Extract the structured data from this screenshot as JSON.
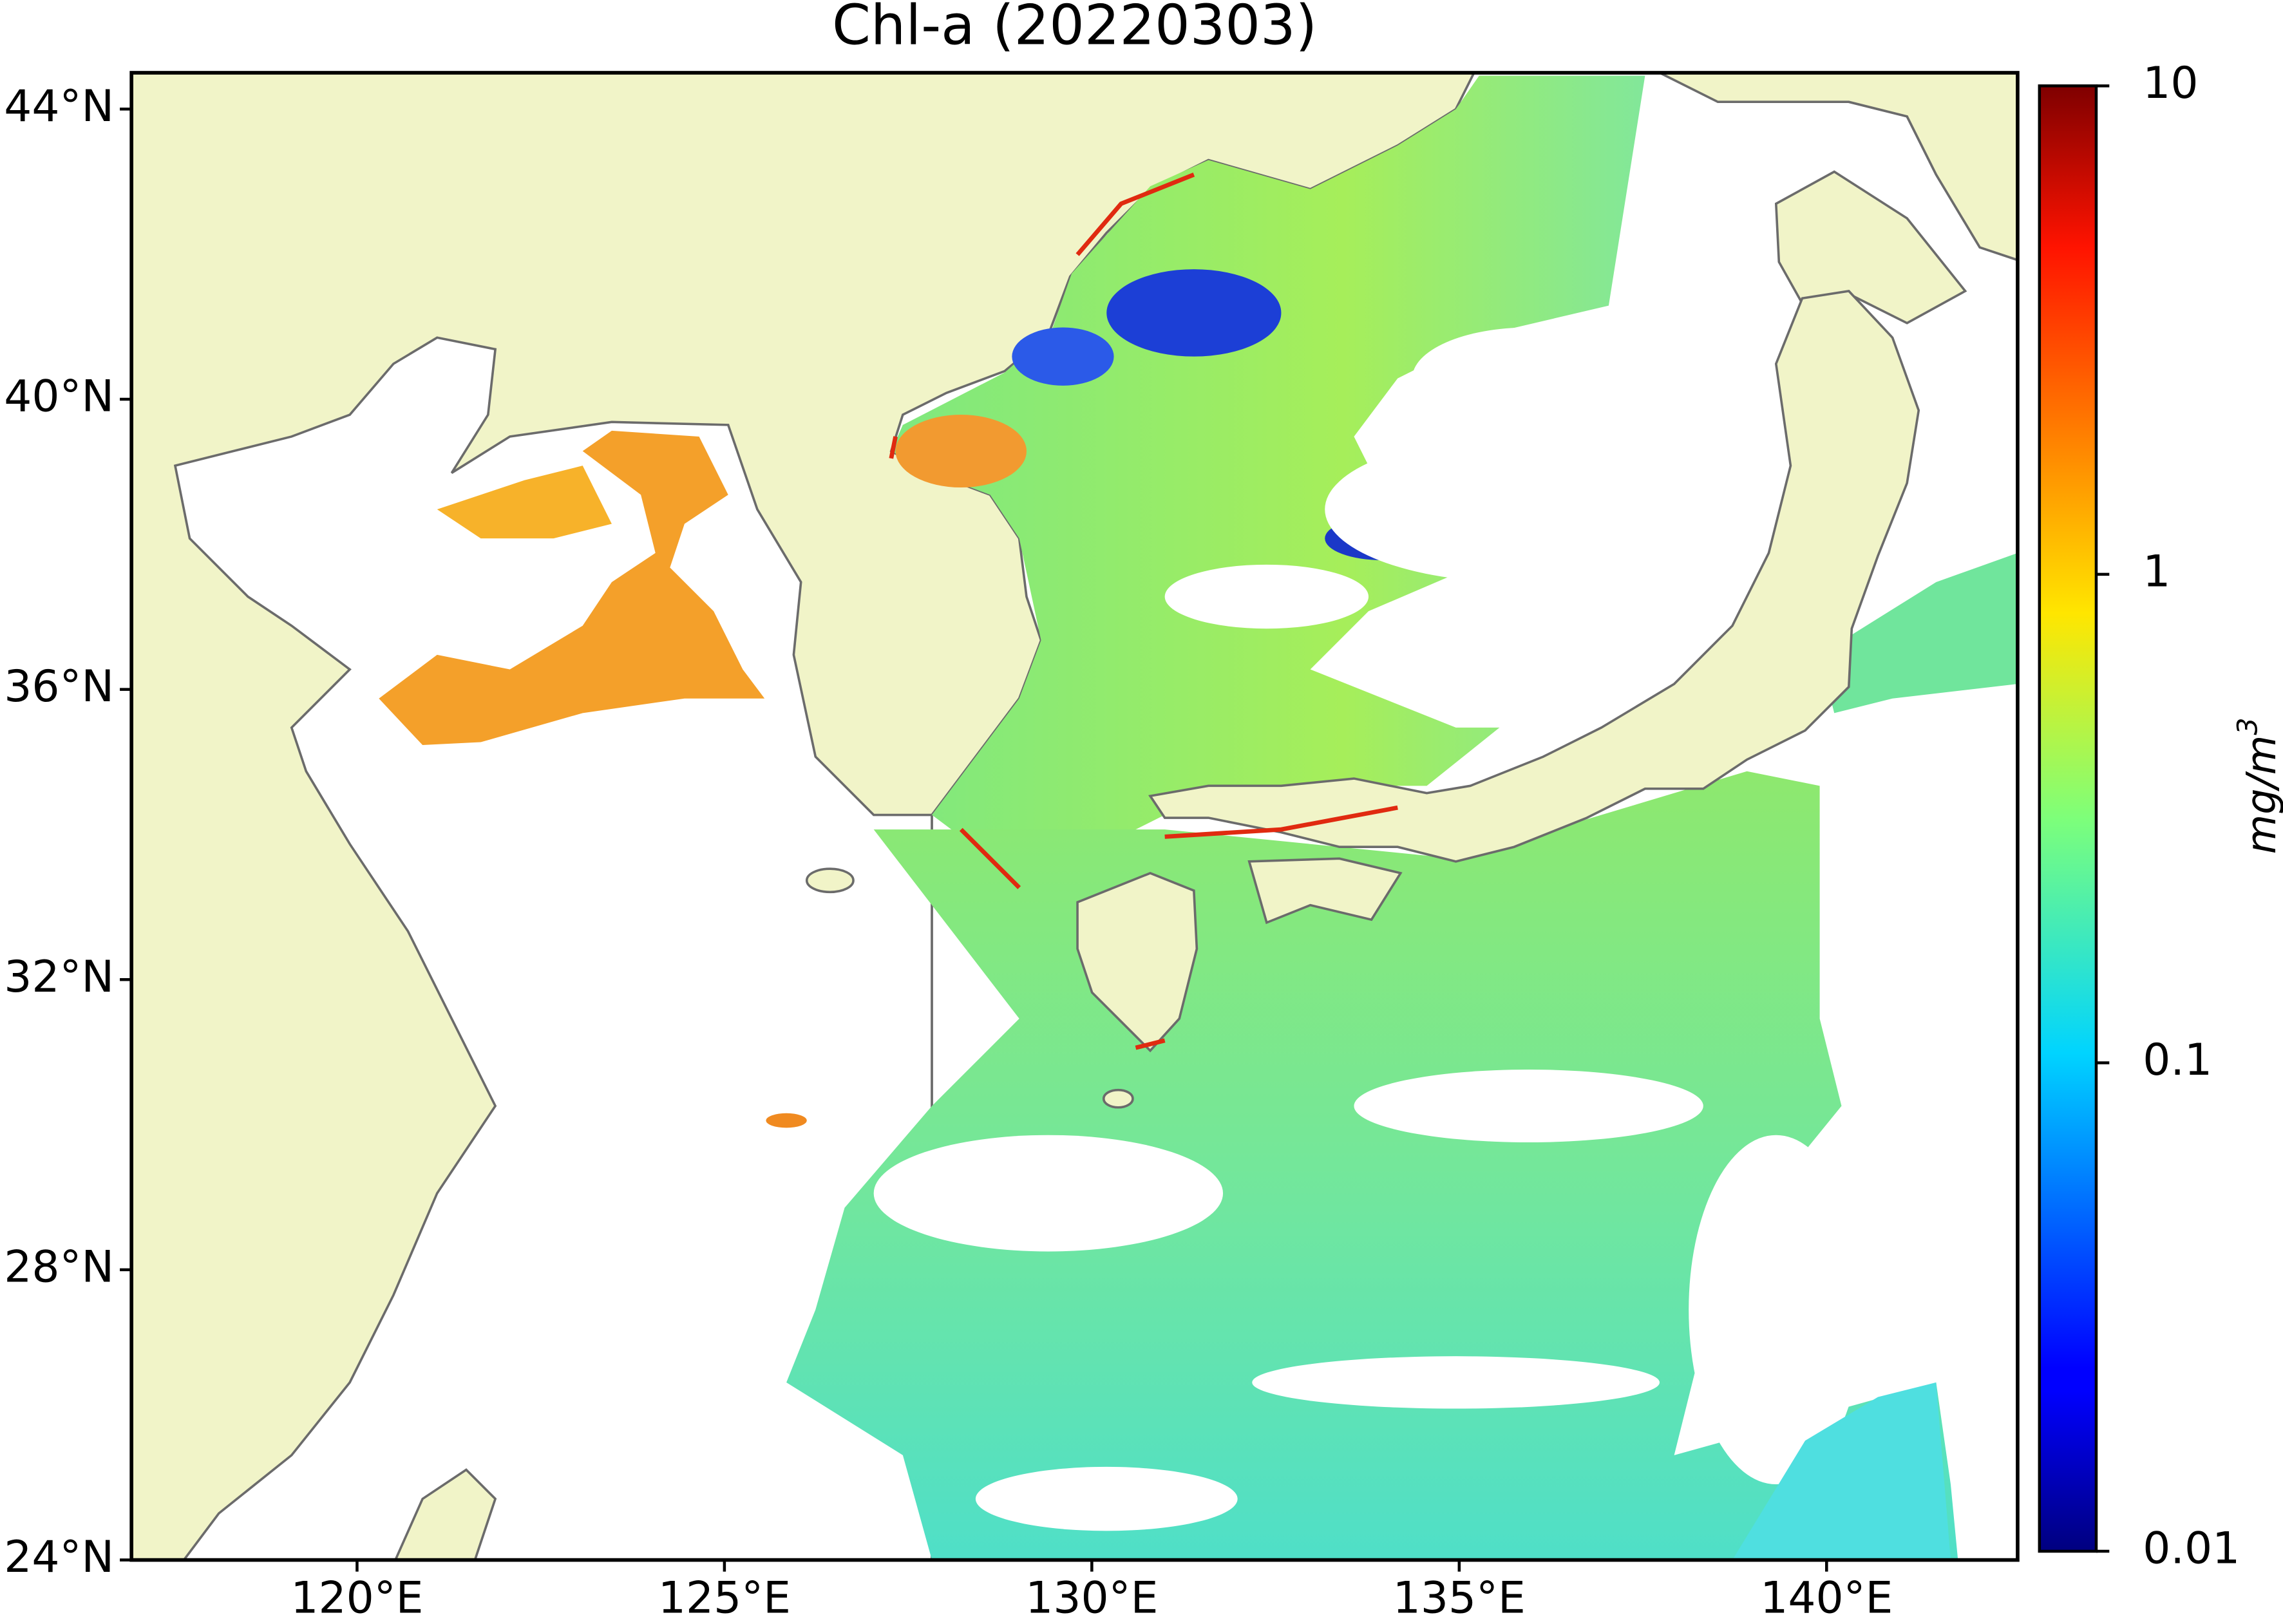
{
  "chart_data": {
    "type": "map",
    "title": "Chl-a (20220303)",
    "xlim": [
      116.93,
      142.6
    ],
    "ylim": [
      24,
      44.5
    ],
    "xticks": [
      {
        "value": 120,
        "label": "120°E"
      },
      {
        "value": 125,
        "label": "125°E"
      },
      {
        "value": 130,
        "label": "130°E"
      },
      {
        "value": 135,
        "label": "135°E"
      },
      {
        "value": 140,
        "label": "140°E"
      }
    ],
    "yticks": [
      {
        "value": 24,
        "label": "24°N"
      },
      {
        "value": 28,
        "label": "28°N"
      },
      {
        "value": 32,
        "label": "32°N"
      },
      {
        "value": 36,
        "label": "36°N"
      },
      {
        "value": 40,
        "label": "40°N"
      },
      {
        "value": 44,
        "label": "44°N"
      }
    ],
    "colorbar": {
      "label": "mg/m",
      "label_superscript": "3",
      "scale": "log",
      "colormap": "jet",
      "lim": [
        0.01,
        10
      ],
      "ticks": [
        0.01,
        0.1,
        1,
        10
      ]
    }
  }
}
